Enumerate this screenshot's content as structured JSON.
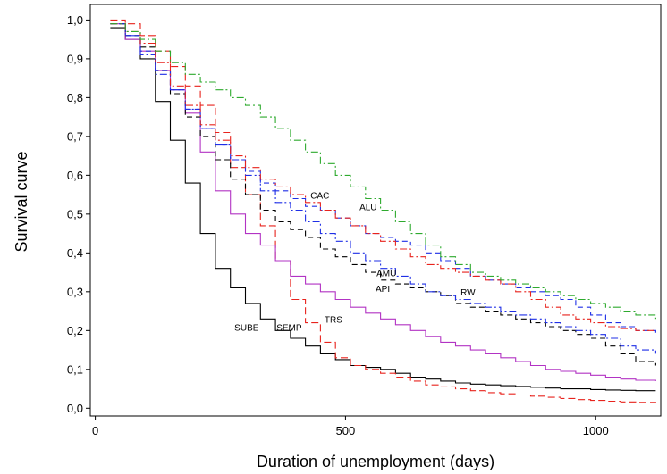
{
  "chart_data": {
    "type": "line",
    "title": "",
    "xlabel": "Duration of unemployment (days)",
    "ylabel": "Survival curve",
    "xlim": [
      -10,
      1130
    ],
    "ylim": [
      -0.02,
      1.04
    ],
    "xticks": [
      0,
      500,
      1000
    ],
    "xtick_labels": [
      "0",
      "500",
      "1000"
    ],
    "yticks": [
      0,
      0.1,
      0.2,
      0.3,
      0.4,
      0.5,
      0.6,
      0.7,
      0.8,
      0.9,
      1.0
    ],
    "ytick_labels": [
      "0,0",
      "0,1",
      "0,2",
      "0,3",
      "0,4",
      "0,5",
      "0,6",
      "0,7",
      "0,8",
      "0,9",
      "1,0"
    ],
    "grid": false,
    "legend": "none",
    "step": true,
    "series": [
      {
        "name": "SUBE",
        "color": "#000000",
        "dash": "solid",
        "label_at": [
          278,
          0.2
        ],
        "x": [
          30,
          60,
          90,
          120,
          150,
          180,
          210,
          240,
          270,
          300,
          330,
          360,
          390,
          420,
          450,
          480,
          510,
          540,
          570,
          600,
          630,
          660,
          690,
          720,
          750,
          780,
          810,
          840,
          870,
          900,
          930,
          960,
          990,
          1020,
          1050,
          1080,
          1120
        ],
        "y": [
          0.98,
          0.95,
          0.9,
          0.79,
          0.69,
          0.58,
          0.45,
          0.36,
          0.31,
          0.27,
          0.23,
          0.2,
          0.18,
          0.16,
          0.14,
          0.125,
          0.11,
          0.105,
          0.1,
          0.09,
          0.08,
          0.075,
          0.07,
          0.065,
          0.062,
          0.06,
          0.058,
          0.056,
          0.054,
          0.052,
          0.05,
          0.05,
          0.048,
          0.047,
          0.046,
          0.045,
          0.045
        ]
      },
      {
        "name": "SEMP",
        "color": "#e8231d",
        "dash": "long",
        "label_at": [
          362,
          0.2
        ],
        "x": [
          30,
          60,
          90,
          120,
          150,
          180,
          210,
          240,
          270,
          300,
          330,
          360,
          390,
          420,
          450,
          480,
          510,
          540,
          570,
          600,
          630,
          660,
          690,
          720,
          750,
          780,
          810,
          840,
          870,
          900,
          930,
          960,
          990,
          1020,
          1050,
          1080,
          1120
        ],
        "y": [
          1.0,
          0.99,
          0.96,
          0.92,
          0.88,
          0.83,
          0.78,
          0.71,
          0.62,
          0.55,
          0.47,
          0.38,
          0.28,
          0.22,
          0.17,
          0.13,
          0.11,
          0.1,
          0.09,
          0.08,
          0.07,
          0.06,
          0.055,
          0.05,
          0.045,
          0.04,
          0.037,
          0.034,
          0.031,
          0.028,
          0.025,
          0.022,
          0.02,
          0.018,
          0.016,
          0.015,
          0.013
        ]
      },
      {
        "name": "TRS",
        "color": "#b233c4",
        "dash": "solid",
        "label_at": [
          458,
          0.22
        ],
        "x": [
          30,
          60,
          90,
          120,
          150,
          180,
          210,
          240,
          270,
          300,
          330,
          360,
          390,
          420,
          450,
          480,
          510,
          540,
          570,
          600,
          630,
          660,
          690,
          720,
          750,
          780,
          810,
          840,
          870,
          900,
          930,
          960,
          990,
          1020,
          1050,
          1080,
          1120
        ],
        "y": [
          0.99,
          0.95,
          0.92,
          0.87,
          0.82,
          0.76,
          0.66,
          0.56,
          0.5,
          0.45,
          0.42,
          0.38,
          0.34,
          0.32,
          0.3,
          0.28,
          0.26,
          0.245,
          0.23,
          0.215,
          0.2,
          0.185,
          0.17,
          0.16,
          0.15,
          0.14,
          0.13,
          0.12,
          0.11,
          0.1,
          0.095,
          0.09,
          0.085,
          0.08,
          0.075,
          0.072,
          0.07
        ]
      },
      {
        "name": "API",
        "color": "#000000",
        "dash": "medium",
        "label_at": [
          560,
          0.3
        ],
        "x": [
          30,
          60,
          90,
          120,
          150,
          180,
          210,
          240,
          270,
          300,
          330,
          360,
          390,
          420,
          450,
          480,
          510,
          540,
          570,
          600,
          630,
          660,
          690,
          720,
          750,
          780,
          810,
          840,
          870,
          900,
          930,
          960,
          990,
          1020,
          1050,
          1080,
          1120
        ],
        "y": [
          0.99,
          0.96,
          0.93,
          0.87,
          0.81,
          0.75,
          0.7,
          0.64,
          0.59,
          0.55,
          0.51,
          0.48,
          0.46,
          0.44,
          0.41,
          0.39,
          0.37,
          0.35,
          0.33,
          0.32,
          0.31,
          0.3,
          0.29,
          0.27,
          0.26,
          0.25,
          0.24,
          0.23,
          0.22,
          0.21,
          0.2,
          0.19,
          0.18,
          0.16,
          0.14,
          0.12,
          0.11
        ]
      },
      {
        "name": "AMU",
        "color": "#1f2fe6",
        "dash": "dashdot",
        "label_at": [
          562,
          0.34
        ],
        "x": [
          30,
          60,
          90,
          120,
          150,
          180,
          210,
          240,
          270,
          300,
          330,
          360,
          390,
          420,
          450,
          480,
          510,
          540,
          570,
          600,
          630,
          660,
          690,
          720,
          750,
          780,
          810,
          840,
          870,
          900,
          930,
          960,
          990,
          1020,
          1050,
          1080,
          1120
        ],
        "y": [
          0.99,
          0.96,
          0.91,
          0.86,
          0.82,
          0.77,
          0.72,
          0.68,
          0.64,
          0.6,
          0.56,
          0.53,
          0.51,
          0.48,
          0.45,
          0.43,
          0.4,
          0.38,
          0.36,
          0.34,
          0.32,
          0.3,
          0.29,
          0.28,
          0.27,
          0.26,
          0.25,
          0.24,
          0.23,
          0.22,
          0.21,
          0.2,
          0.19,
          0.18,
          0.16,
          0.15,
          0.14
        ]
      },
      {
        "name": "RW",
        "color": "#1f2fe6",
        "dash": "medium",
        "label_at": [
          730,
          0.29
        ],
        "x": [
          30,
          60,
          90,
          120,
          150,
          180,
          210,
          240,
          270,
          300,
          330,
          360,
          390,
          420,
          450,
          480,
          510,
          540,
          570,
          600,
          630,
          660,
          690,
          720,
          750,
          780,
          810,
          840,
          870,
          900,
          930,
          960,
          990,
          1020,
          1050,
          1080,
          1120
        ],
        "y": [
          0.99,
          0.96,
          0.92,
          0.87,
          0.82,
          0.77,
          0.72,
          0.68,
          0.64,
          0.61,
          0.58,
          0.56,
          0.54,
          0.52,
          0.51,
          0.49,
          0.47,
          0.45,
          0.44,
          0.43,
          0.42,
          0.4,
          0.38,
          0.36,
          0.34,
          0.33,
          0.32,
          0.31,
          0.3,
          0.29,
          0.28,
          0.26,
          0.24,
          0.22,
          0.21,
          0.2,
          0.19
        ]
      },
      {
        "name": "CAC",
        "color": "#e8231d",
        "dash": "dashdot",
        "label_at": [
          430,
          0.54
        ],
        "x": [
          30,
          60,
          90,
          120,
          150,
          180,
          210,
          240,
          270,
          300,
          330,
          360,
          390,
          420,
          450,
          480,
          510,
          540,
          570,
          600,
          630,
          660,
          690,
          720,
          750,
          780,
          810,
          840,
          870,
          900,
          930,
          960,
          990,
          1020,
          1050,
          1080,
          1120
        ],
        "y": [
          0.99,
          0.97,
          0.94,
          0.89,
          0.83,
          0.78,
          0.73,
          0.69,
          0.65,
          0.62,
          0.59,
          0.57,
          0.55,
          0.53,
          0.51,
          0.49,
          0.47,
          0.45,
          0.43,
          0.41,
          0.39,
          0.37,
          0.36,
          0.35,
          0.34,
          0.33,
          0.32,
          0.3,
          0.28,
          0.26,
          0.24,
          0.23,
          0.22,
          0.21,
          0.205,
          0.2,
          0.2
        ]
      },
      {
        "name": "ALU",
        "color": "#2eaa2e",
        "dash": "dashdot",
        "label_at": [
          528,
          0.51
        ],
        "x": [
          30,
          60,
          90,
          120,
          150,
          180,
          210,
          240,
          270,
          300,
          330,
          360,
          390,
          420,
          450,
          480,
          510,
          540,
          570,
          600,
          630,
          660,
          690,
          720,
          750,
          780,
          810,
          840,
          870,
          900,
          930,
          960,
          990,
          1020,
          1050,
          1080,
          1120
        ],
        "y": [
          0.99,
          0.97,
          0.95,
          0.92,
          0.89,
          0.86,
          0.84,
          0.82,
          0.8,
          0.78,
          0.75,
          0.72,
          0.69,
          0.66,
          0.63,
          0.6,
          0.57,
          0.54,
          0.51,
          0.48,
          0.45,
          0.42,
          0.39,
          0.37,
          0.35,
          0.34,
          0.33,
          0.32,
          0.31,
          0.3,
          0.29,
          0.28,
          0.27,
          0.26,
          0.25,
          0.24,
          0.23
        ]
      }
    ]
  }
}
